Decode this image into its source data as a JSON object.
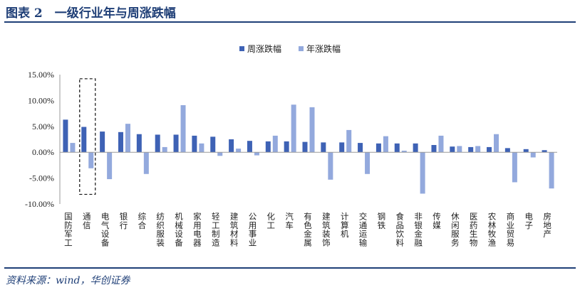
{
  "figure": {
    "title": "图表 2　一级行业年与周涨跌幅",
    "source": "资料来源：wind，华创证券"
  },
  "colors": {
    "primary_series": "#3e62b5",
    "secondary_series": "#93a9dd",
    "accent": "#1f3f77"
  },
  "chart_data": {
    "type": "bar",
    "title": "一级行业年与周涨跌幅",
    "xlabel": "",
    "ylabel": "",
    "ylim": [
      -0.1,
      0.15
    ],
    "yticks": [
      0.15,
      0.1,
      0.05,
      0.0,
      -0.05,
      -0.1
    ],
    "ytick_labels": [
      "15.00%",
      "10.00%",
      "5.00%",
      "0.00%",
      "-5.00%",
      "-10.00%"
    ],
    "grid": false,
    "legend_position": "top-center",
    "highlight": {
      "category": "通信",
      "style": "dashed-box"
    },
    "categories": [
      "国防军工",
      "通信",
      "电气设备",
      "银行",
      "综合",
      "纺织服装",
      "机械设备",
      "家用电器",
      "轻工制造",
      "建筑材料",
      "公用事业",
      "化工",
      "汽车",
      "有色金属",
      "建筑装饰",
      "计算机",
      "交通运输",
      "钢铁",
      "食品饮料",
      "非银金融",
      "传媒",
      "休闲服务",
      "医药生物",
      "农林牧渔",
      "商业贸易",
      "电子",
      "房地产"
    ],
    "series": [
      {
        "name": "周涨跌幅",
        "values": [
          0.063,
          0.049,
          0.04,
          0.039,
          0.035,
          0.034,
          0.034,
          0.032,
          0.03,
          0.025,
          0.022,
          0.021,
          0.021,
          0.02,
          0.019,
          0.019,
          0.018,
          0.017,
          0.017,
          0.017,
          0.014,
          0.011,
          0.01,
          0.01,
          0.008,
          0.006,
          0.004
        ]
      },
      {
        "name": "年涨跌幅",
        "values": [
          0.018,
          -0.031,
          -0.052,
          0.055,
          -0.042,
          0.01,
          0.091,
          0.017,
          -0.007,
          0.007,
          -0.006,
          0.032,
          0.092,
          0.087,
          -0.053,
          0.043,
          -0.042,
          0.031,
          0.003,
          -0.08,
          0.032,
          0.012,
          0.012,
          0.035,
          -0.058,
          -0.01,
          -0.07
        ]
      }
    ]
  }
}
